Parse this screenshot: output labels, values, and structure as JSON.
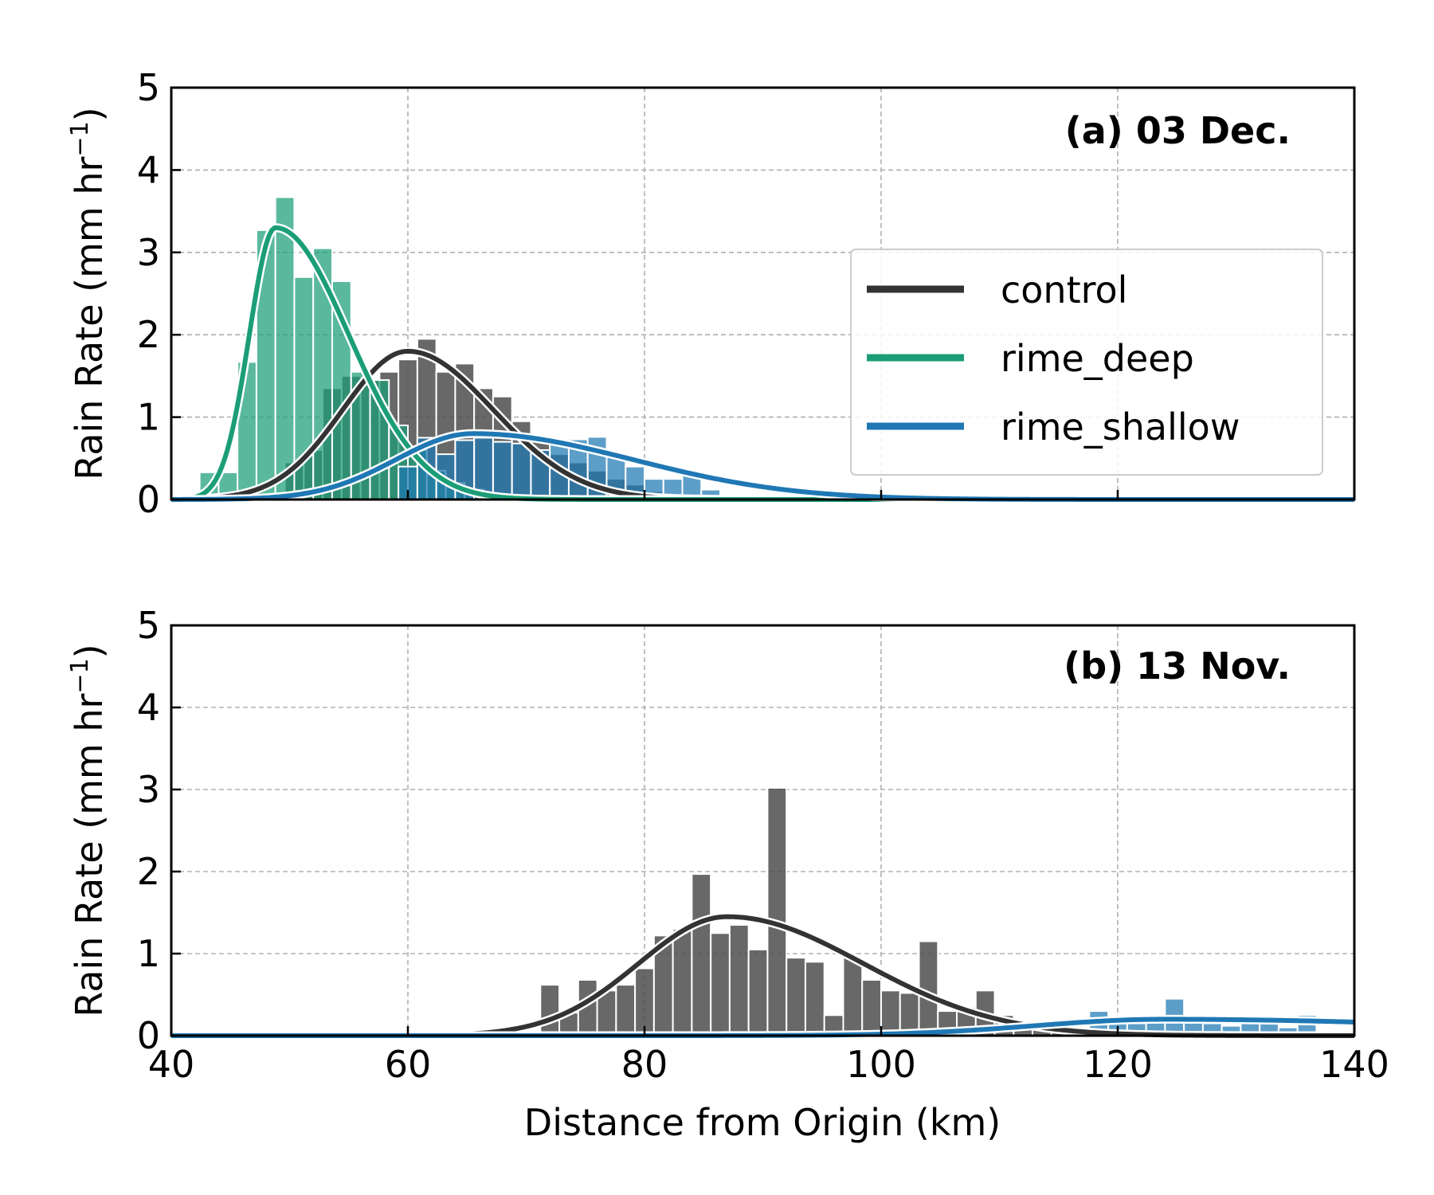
{
  "colors": {
    "control": "#333333",
    "control_bar": "#4d4d4d",
    "rime_deep": "#1b9e77",
    "rime_shallow": "#1f78b4",
    "grid": "#b0b0b0"
  },
  "chart_data": [
    {
      "type": "bar",
      "title": "(a) 03 Dec.",
      "xlabel": "",
      "ylabel": "Rain Rate (mm hr",
      "ylabel_sup": "−1",
      "ylabel_close": ")",
      "xlim": [
        40,
        140
      ],
      "ylim": [
        0,
        5
      ],
      "yticks": [
        "0",
        "1",
        "2",
        "3",
        "4",
        "5"
      ],
      "grid": true,
      "legend_position": "center-right",
      "bin_width": 1.6,
      "series": [
        {
          "name": "control",
          "bars": {
            "x": [
              50.4,
              52.0,
              53.6,
              55.2,
              56.8,
              58.4,
              60.0,
              61.6,
              63.2,
              64.8,
              66.4,
              68.0,
              69.6,
              71.2,
              72.8,
              74.4,
              76.0,
              77.6,
              79.2,
              80.8,
              82.4,
              84.0
            ],
            "y": [
              0.45,
              0.6,
              1.35,
              1.5,
              1.45,
              1.55,
              1.7,
              1.95,
              1.55,
              1.65,
              1.35,
              1.25,
              0.95,
              0.75,
              0.55,
              0.45,
              0.35,
              0.25,
              0.18,
              0.1,
              0.05,
              0.03
            ]
          },
          "curve": {
            "amplitude": 1.8,
            "peak": 60.0,
            "sigma_left": 5.5,
            "sigma_right": 7.2
          }
        },
        {
          "name": "rime_deep",
          "bars": {
            "x": [
              43.2,
              44.8,
              46.4,
              48.0,
              49.6,
              51.2,
              52.8,
              54.4,
              56.0,
              57.6,
              59.2,
              60.8,
              62.4,
              64.0,
              65.6,
              67.2
            ],
            "y": [
              0.33,
              0.33,
              1.67,
              3.27,
              3.67,
              2.7,
              3.05,
              2.65,
              1.55,
              1.45,
              0.9,
              0.6,
              0.35,
              0.2,
              0.12,
              0.05
            ]
          },
          "curve": {
            "amplitude": 3.3,
            "peak": 48.8,
            "sigma_left": 2.2,
            "sigma_right": 6.2
          }
        },
        {
          "name": "rime_shallow",
          "bars": {
            "x": [
              60.0,
              61.6,
              63.2,
              64.8,
              66.4,
              68.0,
              69.6,
              71.2,
              72.8,
              74.4,
              76.0,
              77.6,
              79.2,
              80.8,
              82.4,
              84.0,
              85.6,
              87.2
            ],
            "y": [
              0.4,
              0.75,
              0.55,
              0.72,
              0.75,
              0.7,
              0.68,
              0.6,
              0.72,
              0.73,
              0.76,
              0.55,
              0.4,
              0.25,
              0.25,
              0.3,
              0.12,
              0.05
            ]
          },
          "curve": {
            "amplitude": 0.8,
            "peak": 65.5,
            "sigma_left": 6.5,
            "sigma_right": 13.5
          }
        }
      ]
    },
    {
      "type": "bar",
      "title": "(b) 13 Nov.",
      "xlabel": "Distance from Origin (km)",
      "ylabel": "Rain Rate (mm hr",
      "ylabel_sup": "−1",
      "ylabel_close": ")",
      "xlim": [
        40,
        140
      ],
      "ylim": [
        0,
        5
      ],
      "xticks": [
        "40",
        "60",
        "80",
        "100",
        "120",
        "140"
      ],
      "yticks": [
        "0",
        "1",
        "2",
        "3",
        "4",
        "5"
      ],
      "grid": true,
      "bin_width": 1.6,
      "series": [
        {
          "name": "control",
          "bars": {
            "x": [
              72.0,
              73.6,
              75.2,
              76.8,
              78.4,
              80.0,
              81.6,
              83.2,
              84.8,
              86.4,
              88.0,
              89.6,
              91.2,
              92.8,
              94.4,
              96.0,
              97.6,
              99.2,
              100.8,
              102.4,
              104.0,
              105.6,
              107.2,
              108.8,
              110.4,
              112.0,
              113.6,
              115.2
            ],
            "y": [
              0.62,
              0.28,
              0.68,
              0.55,
              0.62,
              0.82,
              1.22,
              1.3,
              1.97,
              1.25,
              1.35,
              1.05,
              3.02,
              0.95,
              0.9,
              0.25,
              0.95,
              0.68,
              0.55,
              0.52,
              1.15,
              0.3,
              0.35,
              0.55,
              0.25,
              0.15,
              0.12,
              0.1
            ]
          },
          "curve": {
            "amplitude": 1.45,
            "peak": 87.0,
            "sigma_left": 7.5,
            "sigma_right": 11.5
          }
        },
        {
          "name": "rime_shallow",
          "bars": {
            "x": [
              118.4,
              120.0,
              121.6,
              123.2,
              124.8,
              126.4,
              128.0,
              129.6,
              131.2,
              132.8,
              134.4,
              136.0
            ],
            "y": [
              0.3,
              0.22,
              0.15,
              0.25,
              0.45,
              0.2,
              0.15,
              0.12,
              0.2,
              0.15,
              0.1,
              0.25
            ]
          },
          "curve": {
            "amplitude": 0.2,
            "peak": 124.0,
            "sigma_left": 11.0,
            "sigma_right": 26.0
          }
        }
      ]
    }
  ]
}
